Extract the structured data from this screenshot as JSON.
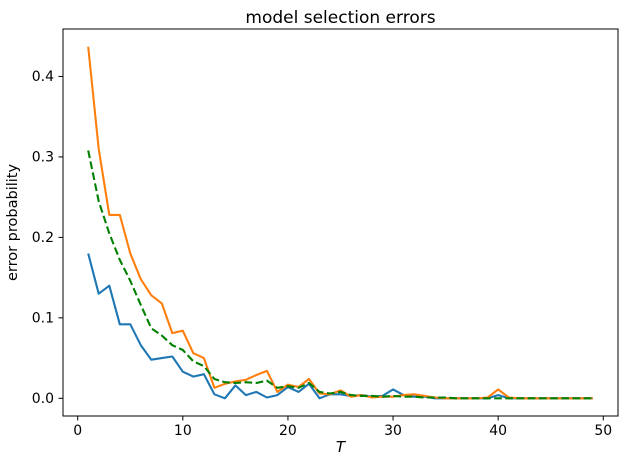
{
  "chart_data": {
    "type": "line",
    "title": "model selection errors",
    "xlabel": "T",
    "ylabel": "error probability",
    "legend": "none",
    "grid": false,
    "background": "#ffffff",
    "axis_color": "#000000",
    "xlim": [
      -1.4,
      51.4
    ],
    "ylim": [
      -0.022,
      0.459
    ],
    "xticks": [
      0,
      10,
      20,
      30,
      40,
      50
    ],
    "yticks": [
      0.0,
      0.1,
      0.2,
      0.3,
      0.4
    ],
    "x": [
      1,
      2,
      3,
      4,
      5,
      6,
      7,
      8,
      9,
      10,
      11,
      12,
      13,
      14,
      15,
      16,
      17,
      18,
      19,
      20,
      21,
      22,
      23,
      24,
      25,
      26,
      27,
      28,
      29,
      30,
      31,
      32,
      33,
      34,
      35,
      36,
      37,
      38,
      39,
      40,
      41,
      42,
      43,
      44,
      45,
      46,
      47,
      48,
      49
    ],
    "series": [
      {
        "name": "blue-solid",
        "color": "#1f77b4",
        "style": "solid",
        "values": [
          0.18,
          0.13,
          0.14,
          0.092,
          0.092,
          0.066,
          0.048,
          0.05,
          0.052,
          0.033,
          0.027,
          0.03,
          0.005,
          0.0,
          0.016,
          0.004,
          0.008,
          0.001,
          0.004,
          0.014,
          0.008,
          0.018,
          0.0,
          0.005,
          0.005,
          0.003,
          0.004,
          0.002,
          0.003,
          0.011,
          0.004,
          0.002,
          0.002,
          0.0,
          0.0,
          0.0,
          0.0,
          0.0,
          0.0,
          0.004,
          0.0,
          0.0,
          0.0,
          0.0,
          0.0,
          0.0,
          0.0,
          0.0,
          0.0
        ]
      },
      {
        "name": "orange-solid",
        "color": "#ff7f0e",
        "style": "solid",
        "values": [
          0.437,
          0.31,
          0.228,
          0.228,
          0.18,
          0.148,
          0.128,
          0.118,
          0.081,
          0.084,
          0.056,
          0.05,
          0.013,
          0.018,
          0.021,
          0.023,
          0.029,
          0.034,
          0.008,
          0.017,
          0.014,
          0.024,
          0.006,
          0.005,
          0.01,
          0.002,
          0.004,
          0.001,
          0.002,
          0.002,
          0.004,
          0.005,
          0.003,
          0.001,
          0.0,
          0.0,
          0.0,
          0.0,
          0.001,
          0.011,
          0.001,
          0.0,
          0.0,
          0.0,
          0.0,
          0.0,
          0.0,
          0.0,
          0.0
        ]
      },
      {
        "name": "green-dashed",
        "color": "#008000",
        "style": "dashed",
        "values": [
          0.308,
          0.245,
          0.205,
          0.172,
          0.146,
          0.116,
          0.087,
          0.078,
          0.066,
          0.06,
          0.046,
          0.04,
          0.024,
          0.02,
          0.019,
          0.02,
          0.019,
          0.022,
          0.013,
          0.015,
          0.013,
          0.019,
          0.008,
          0.006,
          0.008,
          0.004,
          0.003,
          0.003,
          0.002,
          0.003,
          0.002,
          0.002,
          0.001,
          0.001,
          0.001,
          0.0,
          0.0,
          0.0,
          0.0,
          0.0,
          0.0,
          0.0,
          0.0,
          0.0,
          0.0,
          0.0,
          0.0,
          0.0,
          0.0
        ]
      }
    ]
  },
  "layout_note": ""
}
